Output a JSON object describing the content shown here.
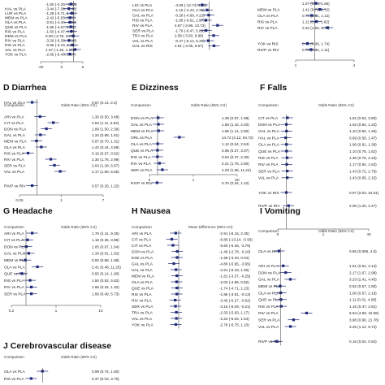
{
  "chart_data": [
    {
      "type": "forest",
      "panel": "top-left",
      "title": "",
      "rows": [
        {
          "comparison": "",
          "est": "-1.80 (-3.29, -0.43)",
          "v": -1.8
        },
        {
          "comparison": "HAL vs PLA",
          "est": "-3.44 (-7.39, -0.40)",
          "v": -3.44
        },
        {
          "comparison": "LUR vs PLA",
          "est": "-1.29 (-3.71, 1.13)",
          "v": -1.29
        },
        {
          "comparison": "MEM vs PLA",
          "est": "-2.42 (-5.55, 0.71)",
          "v": -2.42
        },
        {
          "comparison": "OLA vs PLA",
          "est": "-2.51 (-4.40, -0.62)",
          "v": -2.51
        },
        {
          "comparison": "QUE vs PLA",
          "est": "-1.95 (-4.67, 0.73)",
          "v": -1.95
        },
        {
          "comparison": "RIS vs PLA",
          "est": "-1.50 (-4.47, 0.84)",
          "v": -1.5
        },
        {
          "comparison": "REM vs PLA",
          "est": "0.00 (-3.75, 3.75)",
          "v": 0
        },
        {
          "comparison": "RIV vs PLA",
          "est": "-3.26 (-6.38, -0.10)",
          "v": -3.26
        },
        {
          "comparison": "RIS vs PLA",
          "est": "-0.65 (-3.19, 1.80)",
          "v": -0.65
        },
        {
          "comparison": "VAL vs PLA",
          "est": "1.37 (-1.46, 4.20)",
          "v": 1.37
        },
        {
          "comparison": "YOK vs PLA",
          "est": "-2.66 (-6.46, 1.14)",
          "v": -2.66
        }
      ],
      "xticks": [
        "-20",
        "0",
        "6"
      ],
      "xlim": [
        -20,
        6
      ]
    },
    {
      "type": "forest",
      "panel": "top-middle",
      "title": "",
      "rows": [
        {
          "comparison": "LIG vs PLA",
          "est": "-4.09 (-12.74, 4.56)",
          "v": -4.09
        },
        {
          "comparison": "OLA vs PLA",
          "est": "-1.16 (-4.44, 2.36)",
          "v": -1.16
        },
        {
          "comparison": "GAL vs PLA",
          "est": "-0.28 (-4.68, 4.22)",
          "v": -0.28
        },
        {
          "comparison": "RIS vs PLA",
          "est": "-1.85 (-6.61, 2.87)",
          "v": -1.85
        },
        {
          "comparison": "RIV vs PLA",
          "est": "4.87 (-3.96, 13.73)",
          "v": 4.87
        },
        {
          "comparison": "SER vs PLA",
          "est": "-1.79 (-9.47, 5.89)",
          "v": -1.79
        },
        {
          "comparison": "TRA vs PLA",
          "est": "2.59 (-3.83, 8.98)",
          "v": 2.59
        },
        {
          "comparison": "VAL vs PLA",
          "est": "-0.47 (-6.14, 5.20)",
          "v": -0.47
        },
        {
          "comparison": "GAL vs RIS",
          "est": "2.81 (-4.05, 9.57)",
          "v": 2.81
        }
      ],
      "xticks": [
        "-20",
        "0",
        "20"
      ],
      "xlim": [
        -20,
        20
      ]
    },
    {
      "type": "forest",
      "panel": "top-right",
      "title": "",
      "rows": [
        {
          "comparison": "",
          "est": "1.07 (0.68, 1.66)",
          "v": 1.07
        },
        {
          "comparison": "MEM vs PLA",
          "est": "1.41 (0.76, 2.72)",
          "v": 1.41
        },
        {
          "comparison": "OLA vs PLA",
          "est": "0.75 (0.51, 1.12)",
          "v": 0.75
        },
        {
          "comparison": "RIS vs PLA",
          "est": "1.11 (0.77, 1.62)",
          "v": 1.11
        },
        {
          "comparison": "RIV vs PLA",
          "est": "2.02 (1.50, 2.72)",
          "v": 2.02
        },
        {
          "comparison": "YOK vs RIS",
          "est": "0.42 (0.09, 1.74)",
          "v": 0.42
        },
        {
          "comparison": "RIVP vs RIV",
          "est": "0.70 (0.44, 1.11)",
          "v": 0.7
        }
      ],
      "xticks": [
        "1",
        "4"
      ],
      "xlim": [
        0,
        4
      ]
    },
    {
      "type": "forest",
      "panel": "D",
      "title": "Diarrhea",
      "header_left": "Comparison",
      "header_right": "Odds Ratio (95% CrI)",
      "rows": [
        {
          "comparison": "HAL vs OLA",
          "est": "0.57 (0.14, 2.2)",
          "v": 0.57
        },
        {
          "comparison": "ARI vs PLA",
          "est": "1.30 (0.50, 3.48)",
          "v": 1.3
        },
        {
          "comparison": "CIT vs PLA",
          "est": "2.53 (1.11, 5.84)",
          "v": 2.53
        },
        {
          "comparison": "DON vs PLA",
          "est": "1.89 (1.50, 2.39)",
          "v": 1.89
        },
        {
          "comparison": "GAL vs PLA",
          "est": "1.34 (0.88, 1.61)",
          "v": 1.34
        },
        {
          "comparison": "MEM vs PLA",
          "est": "0.97 (0.70, 1.31)",
          "v": 0.97
        },
        {
          "comparison": "OLA vs PLA",
          "est": "1.42 (0.44, 4.59)",
          "v": 1.42
        },
        {
          "comparison": "RIS vs PLA",
          "est": "0.19 (0.07, 0.52)",
          "v": 0.19
        },
        {
          "comparison": "RIV vs PLA",
          "est": "2.30 (1.76, 2.99)",
          "v": 2.3
        },
        {
          "comparison": "SER vs PLA",
          "est": "2.64 (1.28, 6.67)",
          "v": 2.64
        },
        {
          "comparison": "VAL vs PLA",
          "est": "3.17 (1.60, 6.55)",
          "v": 3.17
        },
        {
          "comparison": "RIVP vs RIV",
          "est": "0.57 (0.26, 1.22)",
          "v": 0.57
        }
      ],
      "xticks": [
        "0.05",
        "1",
        "7"
      ],
      "xlim": [
        0,
        7
      ]
    },
    {
      "type": "forest",
      "panel": "E",
      "title": "Dizziness",
      "header_left": "Comparison",
      "header_right": "Odds Ratio (95% CrI)",
      "rows": [
        {
          "comparison": "DON vs PLA",
          "est": "1.38 (0.97, 1.99)",
          "v": 1.38
        },
        {
          "comparison": "GAL vs PLA",
          "est": "1.56 (1.15, 2.20)",
          "v": 1.56
        },
        {
          "comparison": "MEM vs PLA",
          "est": "1.65 (1.14, 2.50)",
          "v": 1.65
        },
        {
          "comparison": "ORL vs PLA",
          "est": "14.72 (4.12, 64.72)",
          "v": 14.72
        },
        {
          "comparison": "OLA vs PLA",
          "est": "1.12 (0.54, 2.54)",
          "v": 1.12
        },
        {
          "comparison": "QUE vs PLA",
          "est": "0.95 (0.27, 3.07)",
          "v": 0.95
        },
        {
          "comparison": "RIS vs PLA",
          "est": "0.94 (0.37, 2.30)",
          "v": 0.94
        },
        {
          "comparison": "RIV vs PLA",
          "est": "2.21 (1.75, 2.80)",
          "v": 2.21
        },
        {
          "comparison": "SER vs PLA",
          "est": "4.03 (1.55, 11.24)",
          "v": 4.03
        },
        {
          "comparison": "RIVP vs RIV",
          "est": "0.70 (0.34, 1.42)",
          "v": 0.7
        }
      ],
      "xticks": [
        "0",
        "1",
        "50"
      ],
      "xlim": [
        0,
        50
      ]
    },
    {
      "type": "forest",
      "panel": "F",
      "title": "Falls",
      "header_left": "Comparison",
      "header_right": "Odds Ratio (95% CrI)",
      "rows": [
        {
          "comparison": "CIT vs PLA",
          "est": "1.52 (0.63, 3.80)",
          "v": 1.52
        },
        {
          "comparison": "DON vs PLA",
          "est": "1.02 (0.84, 1.23)",
          "v": 1.02
        },
        {
          "comparison": "GAL vs PLA",
          "est": "1.10 (0.82, 1.46)",
          "v": 1.1
        },
        {
          "comparison": "HAL vs PLA",
          "est": "0.69 (0.58, 1.47)",
          "v": 0.69
        },
        {
          "comparison": "OLA vs PLA",
          "est": "1.06 (0.81, 1.38)",
          "v": 1.06
        },
        {
          "comparison": "QUE vs PLA",
          "est": "1.10 (0.75, 1.62)",
          "v": 1.1
        },
        {
          "comparison": "RIS vs PLA",
          "est": "1.36 (0.75, 2.43)",
          "v": 1.36
        },
        {
          "comparison": "RIV vs PLA",
          "est": "1.17 (0.84, 1.62)",
          "v": 1.17
        },
        {
          "comparison": "SER vs PLA",
          "est": "1.43 (0.72, 2.79)",
          "v": 1.43
        },
        {
          "comparison": "VAL vs PLA",
          "est": "1.43 (0.95, 2.15)",
          "v": 1.43
        },
        {
          "comparison": "YOK vs RIS",
          "est": "0.97 (0.03, 34.51)",
          "v": 0.97
        },
        {
          "comparison": "RIVP vs RIV",
          "est": "2.05 (1.20, 3.47)",
          "v": 2.05
        }
      ],
      "xticks": [
        "0",
        "1",
        "40"
      ],
      "xlim": [
        0,
        40
      ]
    },
    {
      "type": "forest",
      "panel": "G",
      "title": "Headache",
      "header_left": "Comparison",
      "header_right": "Odds Ratio (95% CrI)",
      "rows": [
        {
          "comparison": "ARI vs PLA",
          "est": "1.76 (2.41, 9.25)",
          "v": 1.76
        },
        {
          "comparison": "CIT vs PLA",
          "est": "1.18 (0.35, 3.89)",
          "v": 1.18
        },
        {
          "comparison": "DON vs PLA",
          "est": "1.05 (0.67, 1.64)",
          "v": 1.05
        },
        {
          "comparison": "GAL vs PLA",
          "est": "1.34 (0.61, 1.62)",
          "v": 1.34
        },
        {
          "comparison": "MEM vs PLA",
          "est": "0.92 (0.88, 1.98)",
          "v": 0.92
        },
        {
          "comparison": "OLA vs PLA",
          "est": "2.41 (0.48, 11.25)",
          "v": 2.41
        },
        {
          "comparison": "QUE vs PLA",
          "est": "0.50 (0.14, 1.90)",
          "v": 0.5
        },
        {
          "comparison": "RIS vs PLA",
          "est": "1.50 (0.52, 4.82)",
          "v": 1.5
        },
        {
          "comparison": "RIV vs PLA",
          "est": "1.66 (0.34, 1.32)",
          "v": 1.66
        },
        {
          "comparison": "SER vs PLA",
          "est": "1.66 (0.49, 5.73)",
          "v": 1.66
        }
      ],
      "xticks": [
        "0.2",
        "1",
        "10"
      ],
      "xlim": [
        0,
        10
      ]
    },
    {
      "type": "forest",
      "panel": "H",
      "title": "Nausea",
      "header_left": "Comparison",
      "header_right": "Mean Difference (95% CrI)",
      "rows": [
        {
          "comparison": "ARI vs PLA",
          "est": "-2.91 (-8.15, 2.35)",
          "v": -2.91
        },
        {
          "comparison": "CIT vs PLA",
          "est": "-6.80 (-13.14, -0.56)",
          "v": -6.8
        },
        {
          "comparison": "CIT vs PLA",
          "est": "-5.60 (-6.46, -3.76)",
          "v": -5.6
        },
        {
          "comparison": "DON vs PLA",
          "est": "-1.46 (-2.78, -0.16)",
          "v": -1.46
        },
        {
          "comparison": "EXE vs PLA",
          "est": "-1.58 (-3.20, 0.04)",
          "v": -1.58
        },
        {
          "comparison": "GAL vs PLA",
          "est": "-4.80 (-5.95, -3.65)",
          "v": -4.8
        },
        {
          "comparison": "HAL vs PLA",
          "est": "-2.61 (-6.33, 1.00)",
          "v": -2.61
        },
        {
          "comparison": "MEM vs PLA",
          "est": "-1.81 (-3.37, -0.25)",
          "v": -1.81
        },
        {
          "comparison": "OLA vs PLA",
          "est": "-2.02 (-4.86, 0.82)",
          "v": -2.02
        },
        {
          "comparison": "QUE vs PLA",
          "est": "-1.74 (-4.71, 1.23)",
          "v": -1.74
        },
        {
          "comparison": "RIS vs PLA",
          "est": "-1.86 (-3.61, -0.12)",
          "v": -1.86
        },
        {
          "comparison": "RIV vs PLA",
          "est": "-3.45 (-6.27, -0.62)",
          "v": -3.45
        },
        {
          "comparison": "SER vs PLA",
          "est": "-3.15 (-6.09, -0.21)",
          "v": -3.15
        },
        {
          "comparison": "TRA vs PLA",
          "est": "-2.33 (-5.83, 1.17)",
          "v": -2.33
        },
        {
          "comparison": "VAL vs PLA",
          "est": "-2.24 (-6.02, 1.54)",
          "v": -2.24
        },
        {
          "comparison": "YOK vs PLA",
          "est": "-2.78 (-6.75, 1.10)",
          "v": -2.78
        }
      ],
      "xticks": [
        "-20",
        "0",
        "20"
      ],
      "xlim": [
        -20,
        20
      ]
    },
    {
      "type": "forest",
      "panel": "I",
      "title": "Vomiting",
      "header_left": "Comparison",
      "header_right": "Odds Ratio (95% CrI)",
      "rows": [
        {
          "comparison": "OLA vs HAI",
          "est": "0.65 (0.085, 4.5)",
          "v": 0.65
        },
        {
          "comparison": "ARI vs PLA",
          "est": "1.61 (0.61, 4.14)",
          "v": 1.61
        },
        {
          "comparison": "DON vs PLA",
          "est": "2.17 (1.67, 2.98)",
          "v": 2.17
        },
        {
          "comparison": "GAL vs PLA",
          "est": "3.23 (2.41, 4.45)",
          "v": 3.23
        },
        {
          "comparison": "MEM vs PLA",
          "est": "0.92 (0.57, 1.50)",
          "v": 0.92
        },
        {
          "comparison": "OLA vs PLA",
          "est": "1.06 (0.57, 2.16)",
          "v": 1.06
        },
        {
          "comparison": "QUE vs PLA",
          "est": "1.11 (0.31, 4.09)",
          "v": 1.11
        },
        {
          "comparison": "RIS vs PLA",
          "est": "1.15 (0.47, 2.81)",
          "v": 1.15
        },
        {
          "comparison": "RIV vs PLA",
          "est": "6.94 (4.59, 10.69)",
          "v": 6.94
        },
        {
          "comparison": "SER vs PLA",
          "est": "3.98 (0.90, 21.78)",
          "v": 3.98
        },
        {
          "comparison": "VAL vs PLA",
          "est": "3.25 (1.12, 9.72)",
          "v": 3.25
        },
        {
          "comparison": "RIVP vs RIV",
          "est": "0.16 (0.04, 0.64)",
          "v": 0.16
        }
      ],
      "xticks": [],
      "xlim": [
        0,
        20
      ]
    },
    {
      "type": "forest",
      "panel": "J",
      "title": "Cerebrovascular disease",
      "header_left": "Comparison",
      "header_right": "Odds Ratio (95% CrI)",
      "rows": [
        {
          "comparison": "OLA vs PLA",
          "est": "0.99 (0.74, 1.50)",
          "v": 0.99
        },
        {
          "comparison": "RIS vs PLA",
          "est": "0.37 (0.03, 3.76)",
          "v": 0.37
        }
      ],
      "xticks": [],
      "xlim": [
        0,
        4
      ]
    }
  ]
}
